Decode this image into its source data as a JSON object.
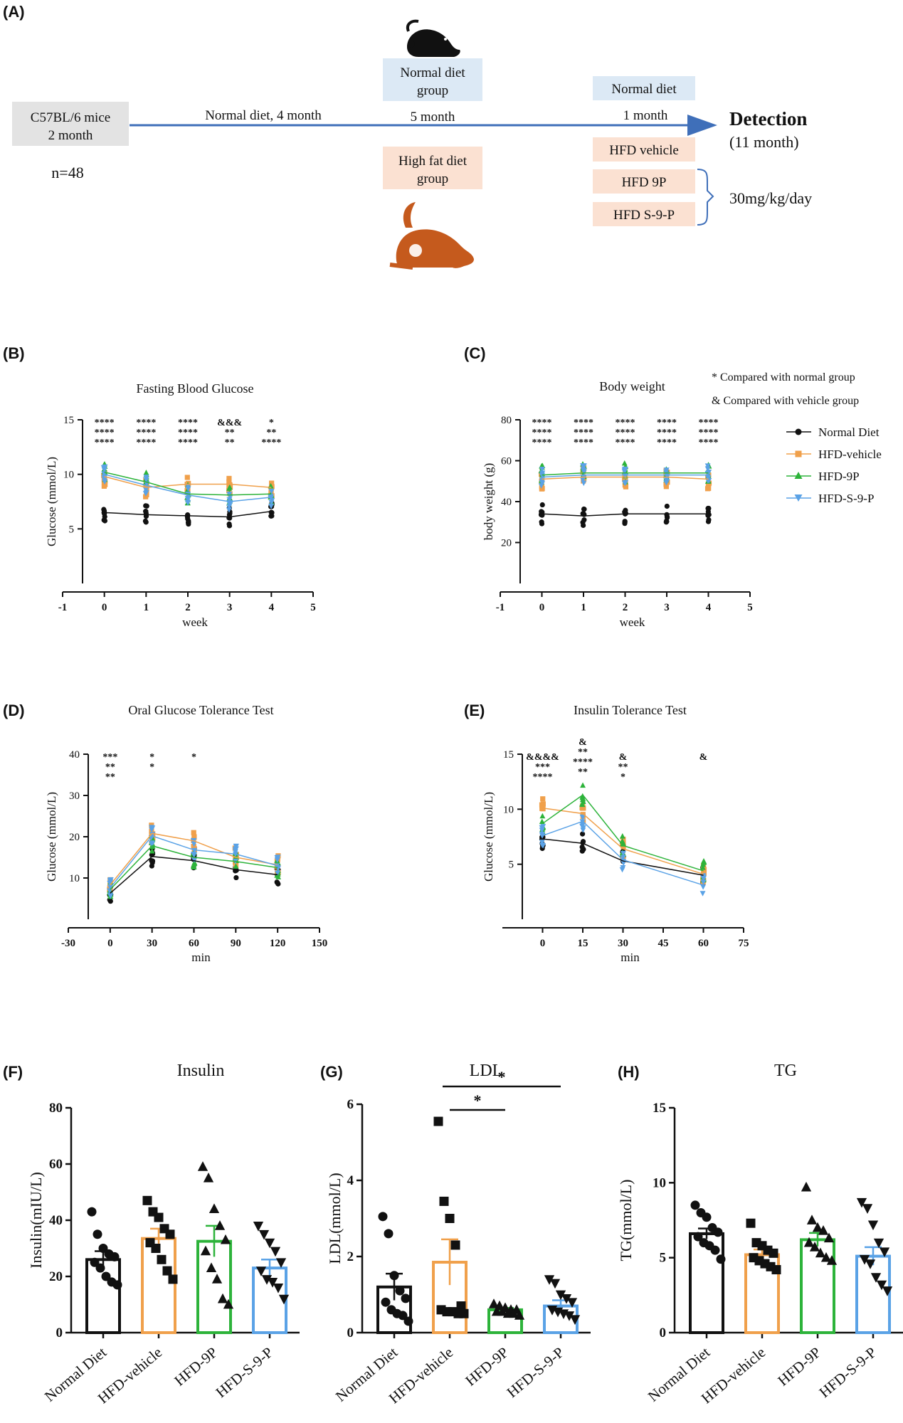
{
  "colors": {
    "normal": "#111111",
    "vehicle": "#f0a04b",
    "p9": "#2db33a",
    "s9p": "#5aa2e6",
    "arrow": "#3f6fb9",
    "box_grey": "#e3e3e3",
    "box_blue": "#dce9f5",
    "box_peach": "#fbe1d2",
    "mouse_dark": "#111111",
    "mouse_orange": "#c55a1d"
  },
  "panel_a": {
    "letter": "(A)",
    "start_box": [
      "C57BL/6 mice",
      "2 month"
    ],
    "n_label": "n=48",
    "arrow_label_1": "Normal diet, 4 month",
    "normal_group": [
      "Normal diet",
      "group"
    ],
    "hfd_group": [
      "High fat diet",
      "group"
    ],
    "arrow_label_2": "5 month",
    "normal_diet_box": "Normal diet",
    "arrow_label_3": "1 month",
    "hfd_vehicle_box": "HFD vehicle",
    "hfd_9p_box": "HFD 9P",
    "hfd_s9p_box": "HFD S-9-P",
    "detection": "Detection",
    "detection_sub": "(11 month)",
    "dose": "30mg/kg/day",
    "icons": [
      "mouse-icon-dark",
      "mouse-icon-orange"
    ]
  },
  "legend": {
    "note_star": "*  Compared with normal group",
    "note_amp": "& Compared with vehicle group",
    "items": [
      "Normal Diet",
      "HFD-vehicle",
      "HFD-9P",
      "HFD-S-9-P"
    ]
  },
  "chart_data": [
    {
      "id": "B",
      "letter": "(B)",
      "type": "scatter",
      "title": "Fasting Blood Glucose",
      "xlabel": "week",
      "ylabel": "Glucose (mmol/L)",
      "xlim": [
        -1,
        5
      ],
      "ylim": [
        0,
        15
      ],
      "xticks": [
        "-1",
        "0",
        "1",
        "2",
        "3",
        "4",
        "5"
      ],
      "yticks": [
        "5",
        "10",
        "15"
      ],
      "x": [
        0,
        1,
        2,
        3,
        4
      ],
      "series": [
        {
          "name": "Normal Diet",
          "mean": [
            6.5,
            6.3,
            6.2,
            6.1,
            6.6
          ]
        },
        {
          "name": "HFD-vehicle",
          "mean": [
            9.8,
            8.8,
            9.1,
            9.1,
            8.8
          ]
        },
        {
          "name": "HFD-9P",
          "mean": [
            10.2,
            9.3,
            8.2,
            8.1,
            8.2
          ]
        },
        {
          "name": "HFD-S-9-P",
          "mean": [
            10.0,
            9.0,
            8.1,
            7.5,
            7.9
          ]
        }
      ],
      "annotations": [
        {
          "x": 0,
          "lines": [
            "****",
            "****",
            "****"
          ],
          "colors": [
            "s9p",
            "p9",
            "vehicle"
          ]
        },
        {
          "x": 1,
          "lines": [
            "****",
            "****",
            "****"
          ],
          "colors": [
            "s9p",
            "p9",
            "vehicle"
          ]
        },
        {
          "x": 2,
          "lines": [
            "****",
            "****",
            "****"
          ],
          "colors": [
            "s9p",
            "p9",
            "vehicle"
          ]
        },
        {
          "x": 3,
          "lines": [
            "&&&",
            "**",
            "**"
          ],
          "colors": [
            "s9p",
            "s9p",
            "p9"
          ]
        },
        {
          "x": 4,
          "lines": [
            "*",
            "**",
            "****"
          ],
          "colors": [
            "s9p",
            "p9",
            "vehicle"
          ]
        }
      ]
    },
    {
      "id": "C",
      "letter": "(C)",
      "type": "scatter",
      "title": "Body weight",
      "xlabel": "week",
      "ylabel": "body weight (g)",
      "xlim": [
        -1,
        5
      ],
      "ylim": [
        0,
        80
      ],
      "xticks": [
        "-1",
        "0",
        "1",
        "2",
        "3",
        "4",
        "5"
      ],
      "yticks": [
        "20",
        "40",
        "60",
        "80"
      ],
      "x": [
        0,
        1,
        2,
        3,
        4
      ],
      "series": [
        {
          "name": "Normal Diet",
          "mean": [
            34,
            33,
            34,
            34,
            34
          ]
        },
        {
          "name": "HFD-vehicle",
          "mean": [
            51,
            52,
            52,
            52,
            51
          ]
        },
        {
          "name": "HFD-9P",
          "mean": [
            53,
            54,
            54,
            54,
            54
          ]
        },
        {
          "name": "HFD-S-9-P",
          "mean": [
            52,
            53,
            53,
            53,
            53
          ]
        }
      ],
      "annotations": [
        {
          "x": 0,
          "lines": [
            "****",
            "****",
            "****"
          ],
          "colors": [
            "s9p",
            "p9",
            "vehicle"
          ]
        },
        {
          "x": 1,
          "lines": [
            "****",
            "****",
            "****"
          ],
          "colors": [
            "s9p",
            "p9",
            "vehicle"
          ]
        },
        {
          "x": 2,
          "lines": [
            "****",
            "****",
            "****"
          ],
          "colors": [
            "s9p",
            "p9",
            "vehicle"
          ]
        },
        {
          "x": 3,
          "lines": [
            "****",
            "****",
            "****"
          ],
          "colors": [
            "s9p",
            "p9",
            "vehicle"
          ]
        },
        {
          "x": 4,
          "lines": [
            "****",
            "****",
            "****"
          ],
          "colors": [
            "s9p",
            "p9",
            "vehicle"
          ]
        }
      ]
    },
    {
      "id": "D",
      "letter": "(D)",
      "type": "scatter",
      "title": "Oral Glucose Tolerance Test",
      "xlabel": "min",
      "ylabel": "Glucose (mmol/L)",
      "xlim": [
        -30,
        150
      ],
      "ylim": [
        0,
        40
      ],
      "xticks": [
        "-30",
        "0",
        "30",
        "60",
        "90",
        "120",
        "150"
      ],
      "yticks": [
        "10",
        "20",
        "30",
        "40"
      ],
      "x": [
        0,
        30,
        60,
        90,
        120
      ],
      "series": [
        {
          "name": "Normal Diet",
          "mean": [
            6.3,
            15.2,
            14.2,
            12.0,
            10.8
          ]
        },
        {
          "name": "HFD-vehicle",
          "mean": [
            8.3,
            20.8,
            19.0,
            15.0,
            13.2
          ]
        },
        {
          "name": "HFD-9P",
          "mean": [
            7.2,
            17.8,
            15.0,
            14.0,
            12.5
          ]
        },
        {
          "name": "HFD-S-9-P",
          "mean": [
            7.6,
            20.2,
            16.8,
            15.8,
            13.0
          ]
        }
      ],
      "annotations": [
        {
          "x": 0,
          "lines": [
            "***",
            "**",
            "**"
          ],
          "colors": [
            "s9p",
            "p9",
            "vehicle"
          ]
        },
        {
          "x": 30,
          "lines": [
            "*",
            "*"
          ],
          "colors": [
            "s9p",
            "vehicle"
          ]
        },
        {
          "x": 60,
          "lines": [
            "*"
          ],
          "colors": [
            "vehicle"
          ]
        }
      ]
    },
    {
      "id": "E",
      "letter": "(E)",
      "type": "scatter",
      "title": "Insulin Tolerance Test",
      "xlabel": "min",
      "ylabel": "Glucose (mmol/L)",
      "xlim": [
        -15,
        75
      ],
      "ylim": [
        0,
        15
      ],
      "xticks": [
        "0",
        "15",
        "30",
        "45",
        "60",
        "75"
      ],
      "yticks": [
        "5",
        "10",
        "15"
      ],
      "x": [
        0,
        15,
        30,
        60
      ],
      "series": [
        {
          "name": "Normal Diet",
          "mean": [
            7.3,
            6.9,
            5.3,
            4.0
          ]
        },
        {
          "name": "HFD-vehicle",
          "mean": [
            10.1,
            9.6,
            6.4,
            4.1
          ]
        },
        {
          "name": "HFD-9P",
          "mean": [
            8.7,
            11.3,
            6.7,
            4.4
          ]
        },
        {
          "name": "HFD-S-9-P",
          "mean": [
            7.6,
            8.9,
            5.4,
            3.1
          ]
        }
      ],
      "annotations": [
        {
          "x": 0,
          "lines": [
            "&&&&",
            "***",
            "****"
          ],
          "colors": [
            "s9p",
            "p9",
            "vehicle"
          ]
        },
        {
          "x": 15,
          "lines": [
            "&",
            "**",
            "****",
            "**"
          ],
          "colors": [
            "p9",
            "s9p",
            "p9",
            "vehicle"
          ]
        },
        {
          "x": 30,
          "lines": [
            "&",
            "**",
            "*"
          ],
          "colors": [
            "s9p",
            "p9",
            "vehicle"
          ]
        },
        {
          "x": 60,
          "lines": [
            "&"
          ],
          "colors": [
            "s9p"
          ]
        }
      ]
    },
    {
      "id": "F",
      "letter": "(F)",
      "type": "bar",
      "title": "Insulin",
      "ylabel": "Insulin(mIU/L)",
      "ylim": [
        0,
        80
      ],
      "yticks": [
        "0",
        "20",
        "40",
        "60",
        "80"
      ],
      "categories": [
        "Normal Diet",
        "HFD-vehicle",
        "HFD-9P",
        "HFD-S-9-P"
      ],
      "values": [
        26,
        33.5,
        32.5,
        23
      ],
      "errors": [
        3,
        3.5,
        5.5,
        3
      ],
      "points": [
        [
          43,
          35,
          30,
          28,
          27,
          25,
          23,
          20,
          18,
          17
        ],
        [
          47,
          43,
          41,
          37,
          35,
          32,
          30,
          26,
          22,
          19
        ],
        [
          59,
          55,
          44,
          38,
          33,
          29,
          23,
          19,
          12,
          10
        ],
        [
          38,
          35,
          32,
          29,
          25,
          22,
          19,
          18,
          16,
          12
        ]
      ],
      "markers": [
        "circle",
        "square",
        "triangle",
        "triangle-down"
      ]
    },
    {
      "id": "G",
      "letter": "(G)",
      "type": "bar",
      "title": "LDL",
      "ylabel": "LDL(mmol/L)",
      "ylim": [
        0,
        6
      ],
      "yticks": [
        "0",
        "2",
        "4",
        "6"
      ],
      "categories": [
        "Normal Diet",
        "HFD-vehicle",
        "HFD-9P",
        "HFD-S-9-P"
      ],
      "values": [
        1.2,
        1.85,
        0.6,
        0.7
      ],
      "errors": [
        0.35,
        0.6,
        0.05,
        0.15
      ],
      "points": [
        [
          3.05,
          2.6,
          1.5,
          1.1,
          0.9,
          0.8,
          0.6,
          0.5,
          0.45,
          0.3
        ],
        [
          5.55,
          3.45,
          3.0,
          2.3,
          0.7,
          0.6,
          0.55,
          0.55,
          0.5,
          0.5
        ],
        [
          0.75,
          0.7,
          0.65,
          0.6,
          0.6,
          0.55,
          0.55,
          0.5,
          0.5,
          0.45
        ],
        [
          1.4,
          1.3,
          1.0,
          0.9,
          0.8,
          0.6,
          0.55,
          0.5,
          0.45,
          0.35
        ]
      ],
      "markers": [
        "circle",
        "square",
        "triangle",
        "triangle-down"
      ],
      "significance": [
        {
          "from": "HFD-vehicle",
          "to": "HFD-S-9-P",
          "label": "*"
        },
        {
          "from": "HFD-vehicle",
          "to": "HFD-9P",
          "label": "*"
        }
      ]
    },
    {
      "id": "H",
      "letter": "(H)",
      "type": "bar",
      "title": "TG",
      "ylabel": "TG(mmol/L)",
      "ylim": [
        0,
        15
      ],
      "yticks": [
        "0",
        "5",
        "10",
        "15"
      ],
      "categories": [
        "Normal Diet",
        "HFD-vehicle",
        "HFD-9P",
        "HFD-S-9-P"
      ],
      "values": [
        6.6,
        5.2,
        6.2,
        5.1
      ],
      "errors": [
        0.35,
        0.35,
        0.45,
        0.6
      ],
      "points": [
        [
          8.5,
          8.0,
          7.7,
          7.0,
          6.7,
          6.4,
          6.0,
          5.8,
          5.5,
          4.9
        ],
        [
          7.3,
          6.0,
          5.8,
          5.5,
          5.3,
          5.0,
          4.8,
          4.6,
          4.4,
          4.2
        ],
        [
          9.7,
          7.5,
          7.0,
          6.8,
          6.3,
          6.0,
          5.7,
          5.3,
          5.0,
          4.8
        ],
        [
          8.7,
          8.3,
          7.2,
          6.0,
          5.4,
          4.9,
          4.6,
          3.7,
          3.2,
          2.8
        ]
      ],
      "markers": [
        "circle",
        "square",
        "triangle",
        "triangle-down"
      ]
    }
  ]
}
